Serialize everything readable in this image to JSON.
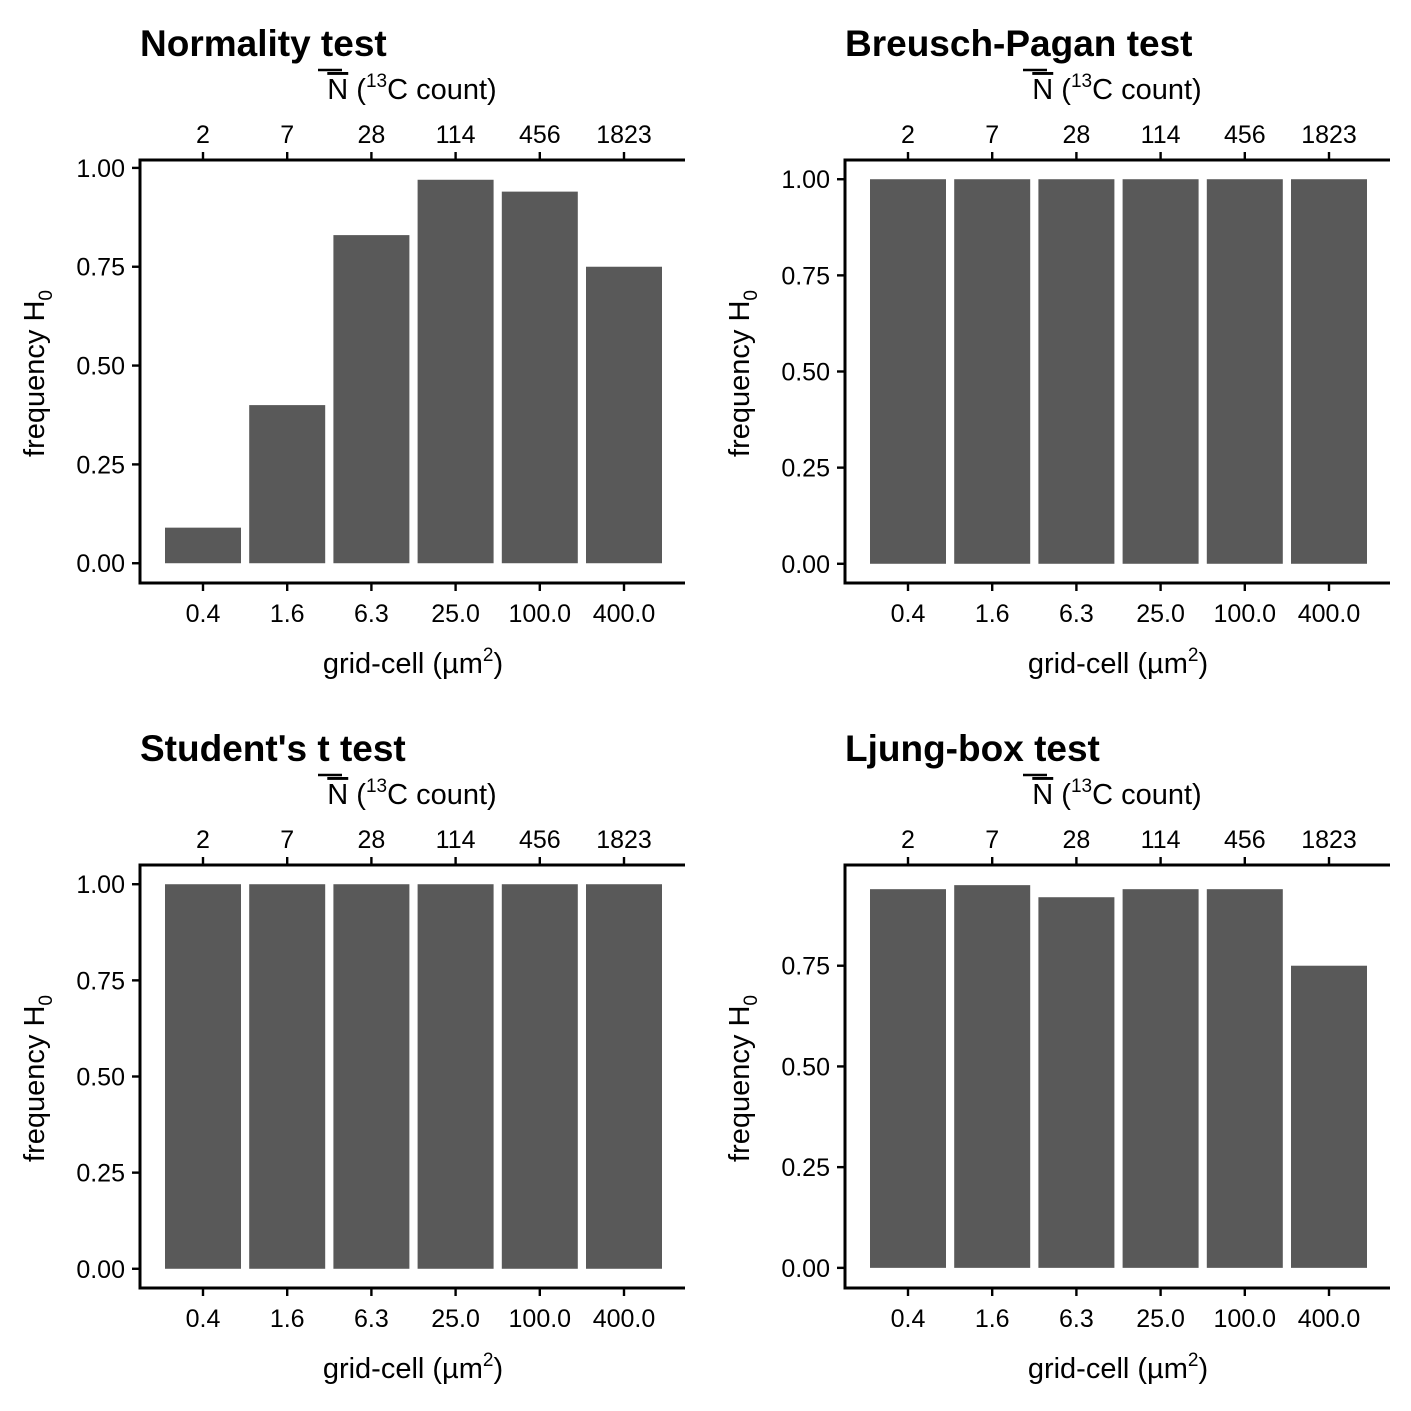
{
  "chart_data": [
    {
      "type": "bar",
      "title": "Normality test",
      "xlabel": "grid-cell (µm2)",
      "top_axis_label": "N (13C count)",
      "ylabel": "frequency H0",
      "categories": [
        "0.4",
        "1.6",
        "6.3",
        "25.0",
        "100.0",
        "400.0"
      ],
      "top_categories": [
        "2",
        "7",
        "28",
        "114",
        "456",
        "1823"
      ],
      "values": [
        0.09,
        0.4,
        0.83,
        0.97,
        0.94,
        0.75
      ],
      "yticks": [
        "0.00",
        "0.25",
        "0.50",
        "0.75",
        "1.00"
      ],
      "ylim": [
        -0.05,
        1.02
      ],
      "bar_color": "#595959"
    },
    {
      "type": "bar",
      "title": "Breusch-Pagan test",
      "xlabel": "grid-cell (µm2)",
      "top_axis_label": "N (13C count)",
      "ylabel": "frequency H0",
      "categories": [
        "0.4",
        "1.6",
        "6.3",
        "25.0",
        "100.0",
        "400.0"
      ],
      "top_categories": [
        "2",
        "7",
        "28",
        "114",
        "456",
        "1823"
      ],
      "values": [
        1.0,
        1.0,
        1.0,
        1.0,
        1.0,
        1.0
      ],
      "yticks": [
        "0.00",
        "0.25",
        "0.50",
        "0.75",
        "1.00"
      ],
      "ylim": [
        -0.05,
        1.05
      ],
      "bar_color": "#595959"
    },
    {
      "type": "bar",
      "title": "Student's t test",
      "xlabel": "grid-cell (µm2)",
      "top_axis_label": "N (13C count)",
      "ylabel": "frequency H0",
      "categories": [
        "0.4",
        "1.6",
        "6.3",
        "25.0",
        "100.0",
        "400.0"
      ],
      "top_categories": [
        "2",
        "7",
        "28",
        "114",
        "456",
        "1823"
      ],
      "values": [
        1.0,
        1.0,
        1.0,
        1.0,
        1.0,
        1.0
      ],
      "yticks": [
        "0.00",
        "0.25",
        "0.50",
        "0.75",
        "1.00"
      ],
      "ylim": [
        -0.05,
        1.05
      ],
      "bar_color": "#595959"
    },
    {
      "type": "bar",
      "title": "Ljung-box test",
      "xlabel": "grid-cell (µm2)",
      "top_axis_label": "N (13C count)",
      "ylabel": "frequency H0",
      "categories": [
        "0.4",
        "1.6",
        "6.3",
        "25.0",
        "100.0",
        "400.0"
      ],
      "top_categories": [
        "2",
        "7",
        "28",
        "114",
        "456",
        "1823"
      ],
      "values": [
        0.94,
        0.95,
        0.92,
        0.94,
        0.94,
        0.75
      ],
      "yticks": [
        "0.00",
        "0.25",
        "0.50",
        "0.75"
      ],
      "ylim": [
        -0.05,
        1.0
      ],
      "bar_color": "#595959"
    }
  ]
}
